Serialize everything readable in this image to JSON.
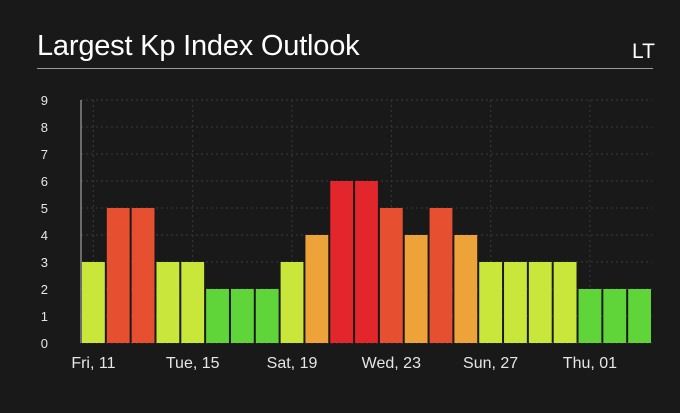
{
  "header": {
    "title": "Largest Kp Index Outlook",
    "timezone": "LT"
  },
  "colors": {
    "background": "#191919",
    "grid": "#3a3a3a",
    "axis_text": "#e6e6e6",
    "level_colors": {
      "2": "#5fd53a",
      "3": "#c9e73b",
      "4": "#eea33a",
      "5": "#e64f30",
      "6": "#e3262b"
    }
  },
  "chart_data": {
    "type": "bar",
    "title": "Largest Kp Index Outlook",
    "xlabel": "",
    "ylabel": "",
    "ylim": [
      0,
      9
    ],
    "yticks": [
      0,
      1,
      2,
      3,
      4,
      5,
      6,
      7,
      8,
      9
    ],
    "grid": true,
    "legend": "none",
    "x_tick_labels": [
      {
        "index": 0,
        "label": "Fri, 11"
      },
      {
        "index": 4,
        "label": "Tue, 15"
      },
      {
        "index": 8,
        "label": "Sat, 19"
      },
      {
        "index": 12,
        "label": "Wed, 23"
      },
      {
        "index": 16,
        "label": "Sun, 27"
      },
      {
        "index": 20,
        "label": "Thu, 01"
      }
    ],
    "values": [
      3,
      5,
      5,
      3,
      3,
      2,
      2,
      2,
      3,
      4,
      6,
      6,
      5,
      4,
      5,
      4,
      3,
      3,
      3,
      3,
      2,
      2,
      2
    ]
  }
}
